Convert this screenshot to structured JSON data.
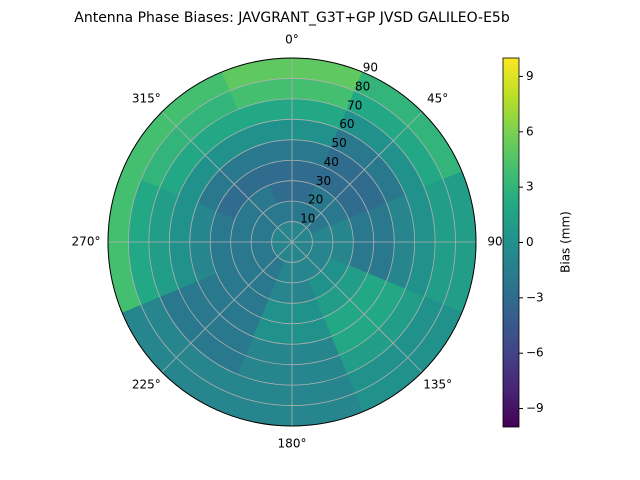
{
  "chart_data": {
    "type": "polar-contour",
    "title": "Antenna Phase Biases: JAVGRANT_G3T+GP JVSD GALILEO-E5b",
    "cmap": "viridis",
    "azimuth": [
      0,
      45,
      90,
      135,
      180,
      225,
      270,
      315
    ],
    "radius": [
      5,
      15,
      25,
      35,
      45,
      55,
      65,
      75,
      85
    ],
    "values": [
      [
        -1,
        -1,
        -1,
        -1,
        -1,
        -1,
        -1,
        -1
      ],
      [
        -2,
        -2,
        -1,
        -1,
        -1,
        -2,
        -2,
        -2
      ],
      [
        -3,
        -2,
        -1,
        0,
        -1,
        -2,
        -2,
        -2
      ],
      [
        -3,
        -3,
        -2,
        1,
        0,
        -2,
        -2,
        -3
      ],
      [
        -2,
        -3,
        -2,
        2,
        0,
        -2,
        -1,
        -2
      ],
      [
        0,
        -2,
        -1,
        2,
        -1,
        -2,
        0,
        0
      ],
      [
        2,
        0,
        0,
        1,
        -1,
        -2,
        1,
        2
      ],
      [
        4,
        2,
        1,
        0,
        -1,
        -1,
        2,
        3
      ],
      [
        5,
        3,
        1,
        0,
        -1,
        -1,
        4,
        4
      ]
    ],
    "rlim": [
      0,
      90
    ],
    "rticks": [
      10,
      20,
      30,
      40,
      50,
      60,
      70,
      80,
      90
    ],
    "thetaticks": [
      {
        "value": 0,
        "label": "0°"
      },
      {
        "value": 45,
        "label": "45°"
      },
      {
        "value": 90,
        "label": "90°"
      },
      {
        "value": 135,
        "label": "135°"
      },
      {
        "value": 180,
        "label": "180°"
      },
      {
        "value": 225,
        "label": "225°"
      },
      {
        "value": 270,
        "label": "270°"
      },
      {
        "value": 315,
        "label": "315°"
      }
    ],
    "grid": true,
    "colorbar_label": "Bias (mm)",
    "clim": [
      -10,
      10
    ],
    "cticks": [
      {
        "value": -9,
        "label": "−9"
      },
      {
        "value": -6,
        "label": "−6"
      },
      {
        "value": -3,
        "label": "−3"
      },
      0,
      3,
      6,
      9
    ]
  }
}
